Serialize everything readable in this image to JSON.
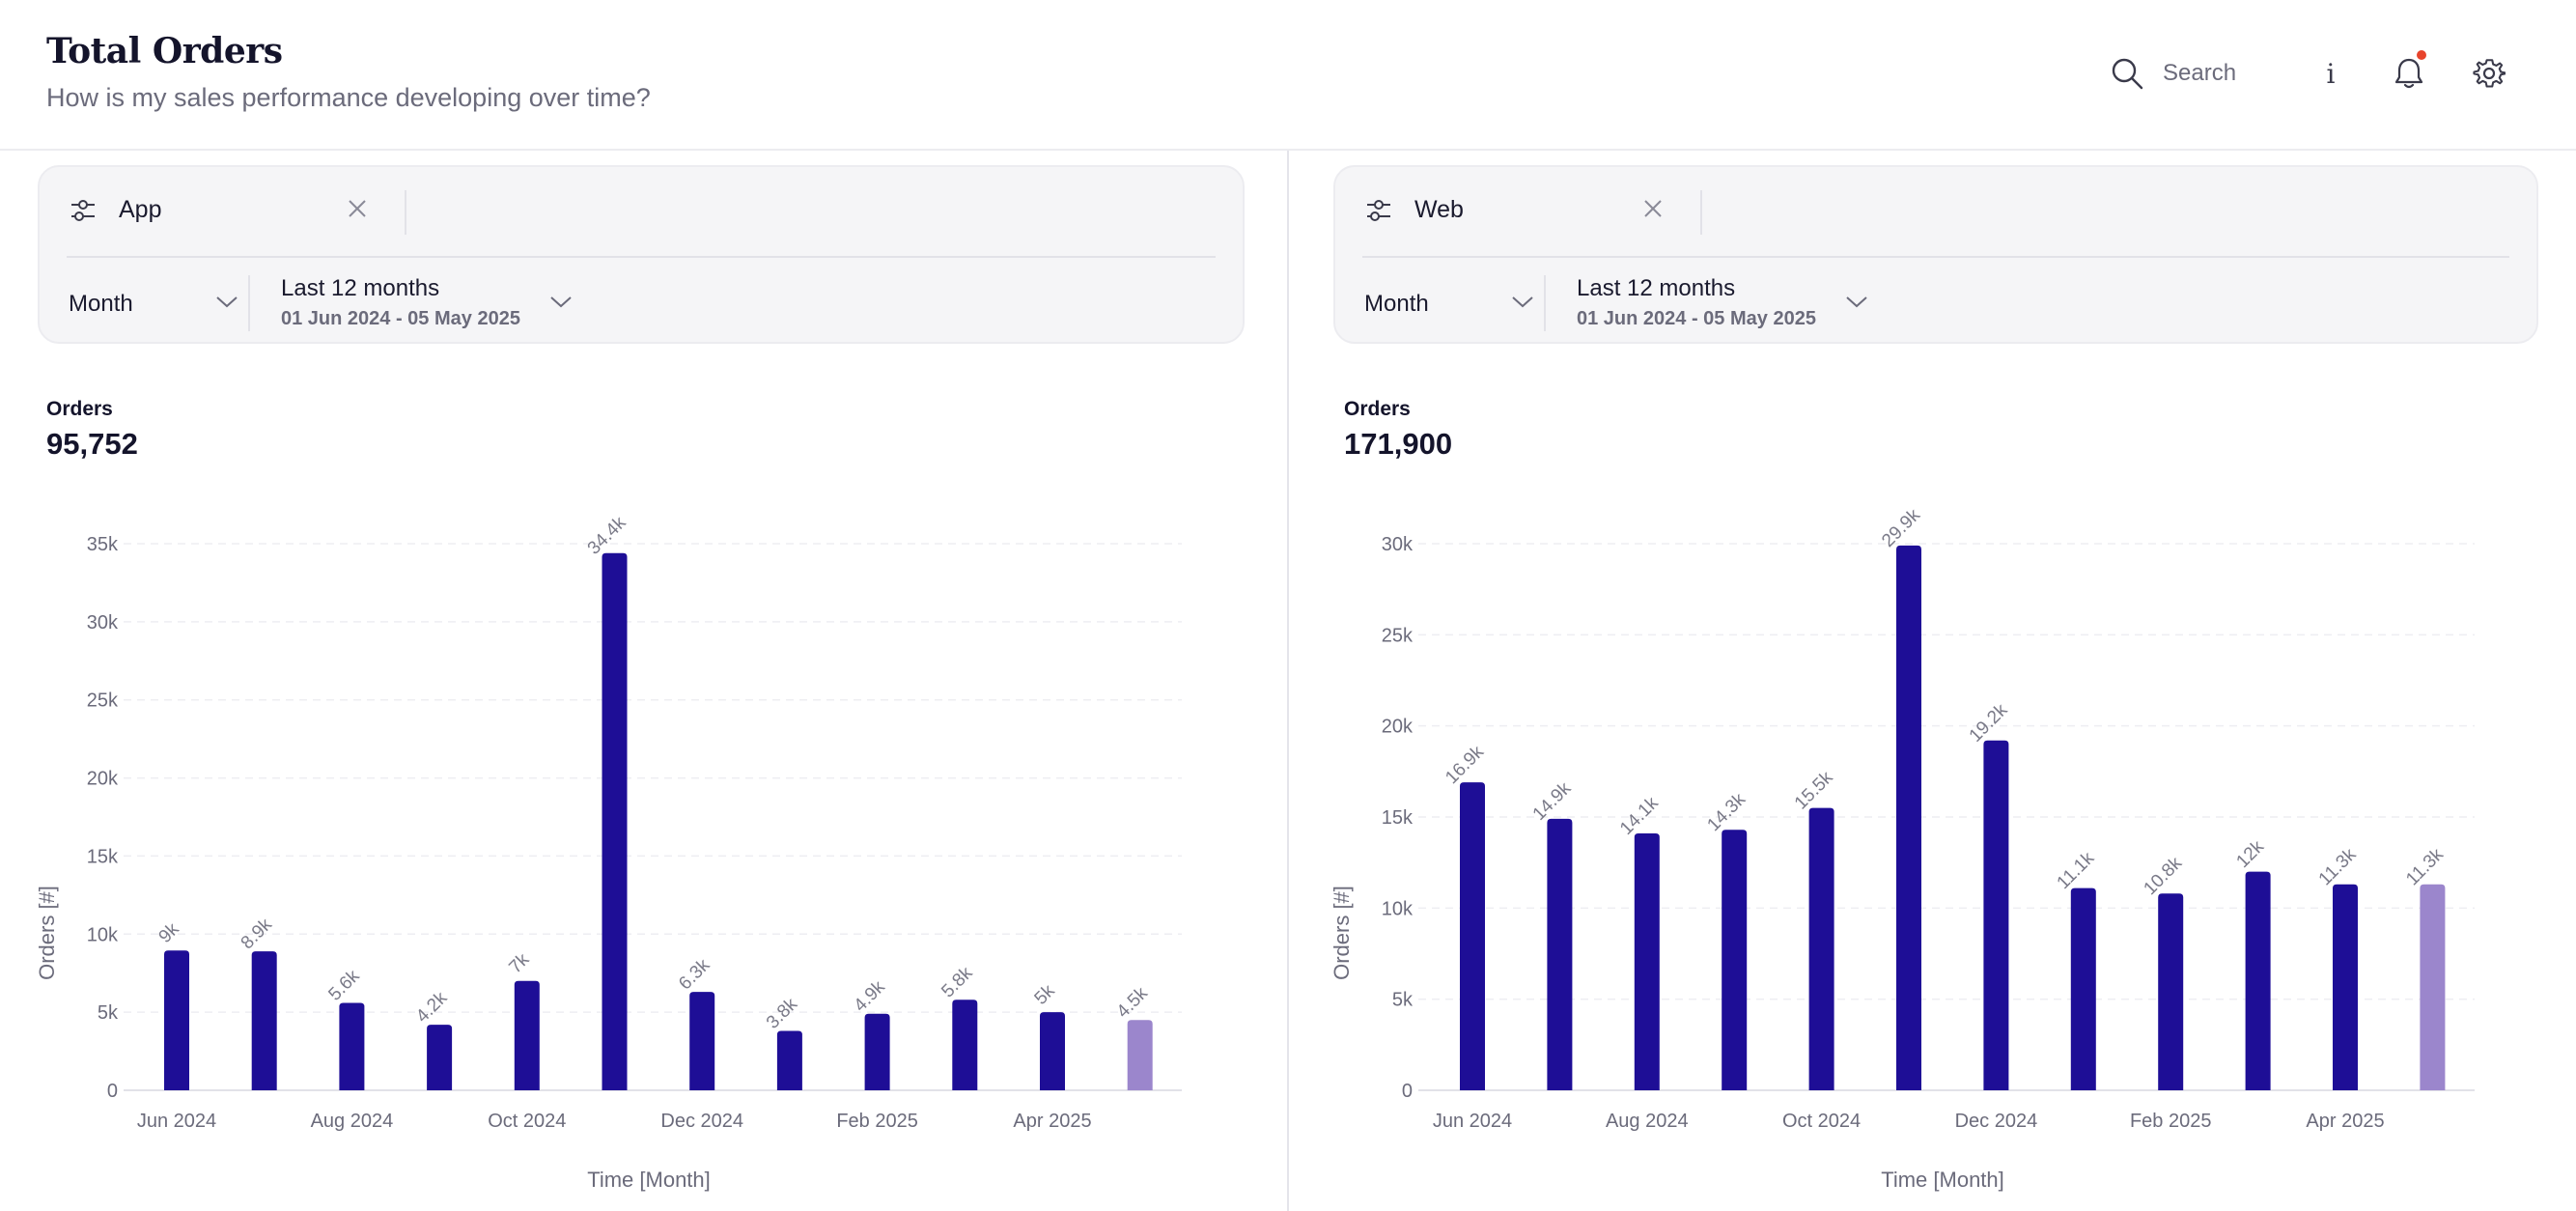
{
  "header": {
    "title": "Total Orders",
    "subtitle": "How is my sales performance developing over time?",
    "search_label": "Search",
    "info_glyph": "i",
    "icons": [
      "search-icon",
      "info-icon",
      "bell-icon",
      "gear-icon"
    ],
    "notification_dot_color": "#e8442c"
  },
  "colors": {
    "bar": "#1e0e96",
    "bar_partial": "#9b86cc"
  },
  "panels": [
    {
      "filter_label": "App",
      "granularity": "Month",
      "range_label": "Last 12 months",
      "range_dates": "01 Jun 2024 - 05 May 2025",
      "kpi_label": "Orders",
      "kpi_value": "95,752"
    },
    {
      "filter_label": "Web",
      "granularity": "Month",
      "range_label": "Last 12 months",
      "range_dates": "01 Jun 2024 - 05 May 2025",
      "kpi_label": "Orders",
      "kpi_value": "171,900"
    }
  ],
  "chart_data": [
    {
      "type": "bar",
      "title": "Orders",
      "xlabel": "Time [Month]",
      "ylabel": "Orders [#]",
      "ylim": [
        0,
        35000
      ],
      "yticks": [
        0,
        5000,
        10000,
        15000,
        20000,
        25000,
        30000,
        35000
      ],
      "ytick_labels": [
        "0",
        "5k",
        "10k",
        "15k",
        "20k",
        "25k",
        "30k",
        "35k"
      ],
      "categories": [
        "Jun 2024",
        "Jul 2024",
        "Aug 2024",
        "Sep 2024",
        "Oct 2024",
        "Nov 2024",
        "Dec 2024",
        "Jan 2025",
        "Feb 2025",
        "Mar 2025",
        "Apr 2025",
        "May 2025"
      ],
      "xtick_labels": [
        "Jun 2024",
        "",
        "Aug 2024",
        "",
        "Oct 2024",
        "",
        "Dec 2024",
        "",
        "Feb 2025",
        "",
        "Apr 2025",
        ""
      ],
      "values": [
        8950,
        8900,
        5600,
        4200,
        7000,
        34400,
        6300,
        3800,
        4900,
        5800,
        5000,
        4500
      ],
      "data_labels": [
        "9k",
        "8.9k",
        "5.6k",
        "4.2k",
        "7k",
        "34.4k",
        "6.3k",
        "3.8k",
        "4.9k",
        "5.8k",
        "5k",
        "4.5k"
      ],
      "partial_last": true,
      "grid": true
    },
    {
      "type": "bar",
      "title": "Orders",
      "xlabel": "Time [Month]",
      "ylabel": "Orders [#]",
      "ylim": [
        0,
        30000
      ],
      "yticks": [
        0,
        5000,
        10000,
        15000,
        20000,
        25000,
        30000
      ],
      "ytick_labels": [
        "0",
        "5k",
        "10k",
        "15k",
        "20k",
        "25k",
        "30k"
      ],
      "categories": [
        "Jun 2024",
        "Jul 2024",
        "Aug 2024",
        "Sep 2024",
        "Oct 2024",
        "Nov 2024",
        "Dec 2024",
        "Jan 2025",
        "Feb 2025",
        "Mar 2025",
        "Apr 2025",
        "May 2025"
      ],
      "xtick_labels": [
        "Jun 2024",
        "",
        "Aug 2024",
        "",
        "Oct 2024",
        "",
        "Dec 2024",
        "",
        "Feb 2025",
        "",
        "Apr 2025",
        ""
      ],
      "values": [
        16900,
        14900,
        14100,
        14300,
        15500,
        29900,
        19200,
        11100,
        10800,
        12000,
        11300,
        11300
      ],
      "data_labels": [
        "16.9k",
        "14.9k",
        "14.1k",
        "14.3k",
        "15.5k",
        "29.9k",
        "19.2k",
        "11.1k",
        "10.8k",
        "12k",
        "11.3k",
        "11.3k"
      ],
      "partial_last": true,
      "grid": true
    }
  ]
}
